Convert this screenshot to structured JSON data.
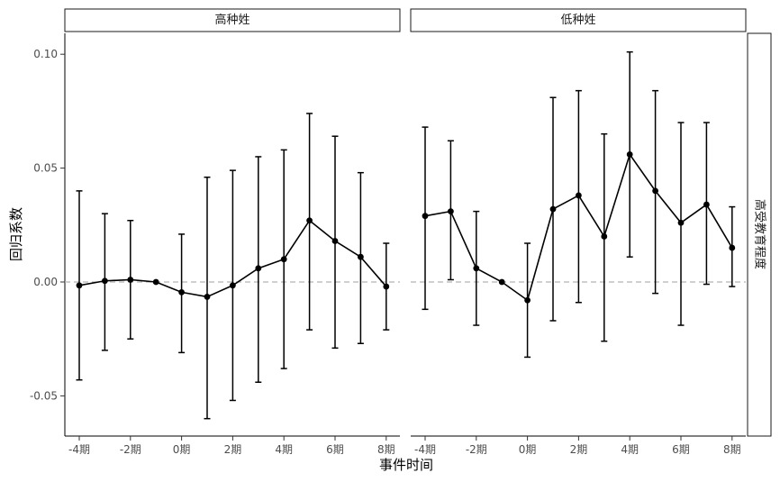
{
  "chart_data": {
    "type": "line",
    "xlabel": "事件时间",
    "ylabel": "回归系数",
    "row_strip": "高受教育程度",
    "facets": [
      "高种姓",
      "低种姓"
    ],
    "x_categories": [
      -4,
      -3,
      -2,
      -1,
      0,
      1,
      2,
      3,
      4,
      5,
      6,
      7,
      8
    ],
    "x_tick_labels": [
      "-4期",
      "-2期",
      "0期",
      "2期",
      "4期",
      "6期",
      "8期"
    ],
    "x_tick_values": [
      -4,
      -2,
      0,
      2,
      4,
      6,
      8
    ],
    "y_ticks": [
      -0.05,
      0.0,
      0.05,
      0.1
    ],
    "y_tick_labels": [
      "-0.05",
      "0.00",
      "0.05",
      "0.10"
    ],
    "ylim": [
      -0.067,
      0.11
    ],
    "reference_line": 0,
    "series": [
      {
        "name": "高种姓",
        "x": [
          -4,
          -3,
          -2,
          -1,
          0,
          1,
          2,
          3,
          4,
          5,
          6,
          7,
          8
        ],
        "y": [
          -0.0015,
          0.0005,
          0.001,
          0.0,
          -0.0045,
          -0.0065,
          -0.0015,
          0.006,
          0.01,
          0.027,
          0.018,
          0.011,
          -0.002
        ],
        "ci_low": [
          -0.043,
          -0.03,
          -0.025,
          null,
          -0.031,
          -0.06,
          -0.052,
          -0.044,
          -0.038,
          -0.021,
          -0.029,
          -0.027,
          -0.021
        ],
        "ci_high": [
          0.04,
          0.03,
          0.027,
          null,
          0.021,
          0.046,
          0.049,
          0.055,
          0.058,
          0.074,
          0.064,
          0.048,
          0.017
        ]
      },
      {
        "name": "低种姓",
        "x": [
          -4,
          -3,
          -2,
          -1,
          0,
          1,
          2,
          3,
          4,
          5,
          6,
          7,
          8
        ],
        "y": [
          0.029,
          0.031,
          0.006,
          0.0,
          -0.008,
          0.032,
          0.038,
          0.02,
          0.056,
          0.04,
          0.026,
          0.034,
          0.015
        ],
        "ci_low": [
          -0.012,
          0.001,
          -0.019,
          null,
          -0.033,
          -0.017,
          -0.009,
          -0.026,
          0.011,
          -0.005,
          -0.019,
          -0.001,
          -0.002
        ],
        "ci_high": [
          0.068,
          0.062,
          0.031,
          null,
          0.017,
          0.081,
          0.084,
          0.065,
          0.101,
          0.084,
          0.07,
          0.07,
          0.033
        ]
      }
    ],
    "colors": {
      "line": "#000000",
      "reference": "#b3b3b3",
      "strip_fill": "#ffffff"
    }
  }
}
